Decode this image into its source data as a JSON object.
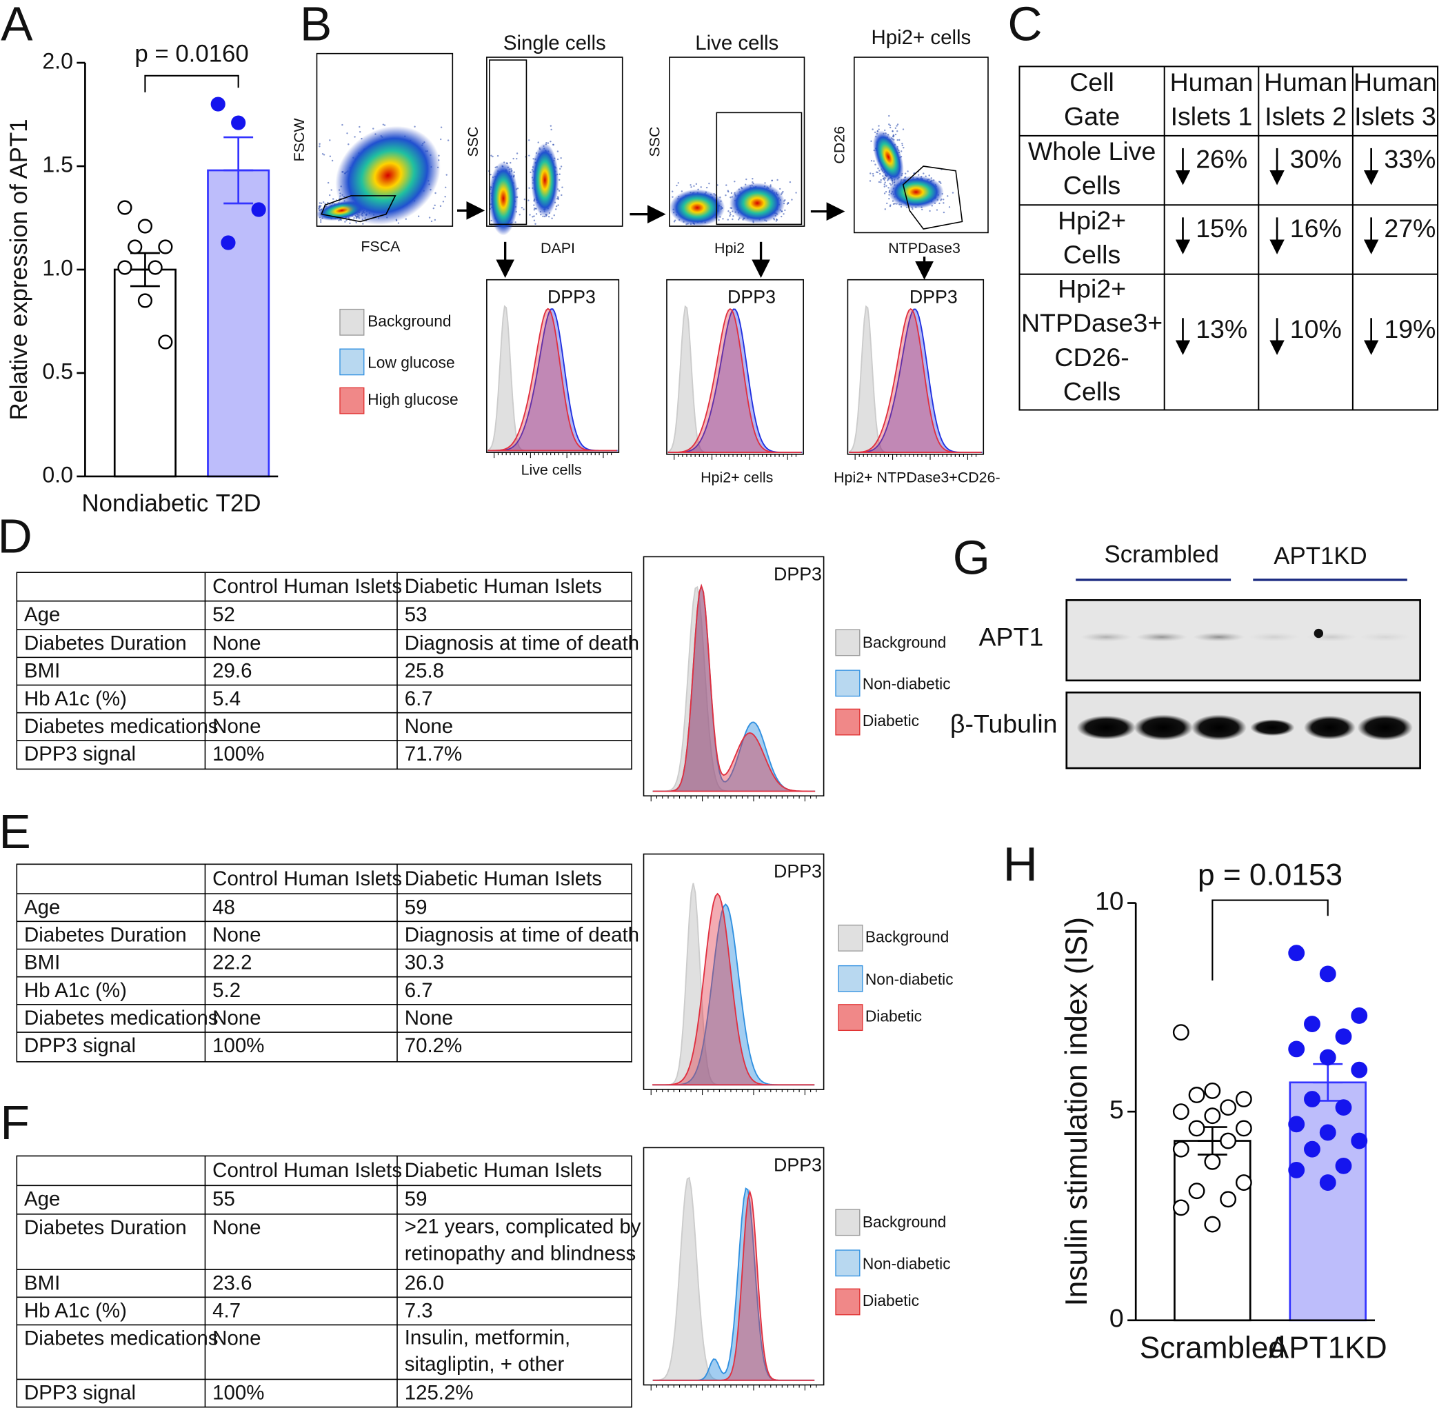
{
  "panel_labels": [
    "A",
    "B",
    "C",
    "D",
    "E",
    "F",
    "G",
    "H"
  ],
  "chart_data": [
    {
      "type": "bar",
      "ylabel": "Relative expression of APT1",
      "annotation": "p = 0.0160",
      "categories": [
        "Nondiabetic",
        "T2D"
      ],
      "values": [
        1.0,
        1.48
      ],
      "errors": [
        0.08,
        0.16
      ],
      "colors": [
        "#ffffff",
        "#bdbdfb"
      ],
      "edge_colors": [
        "#000000",
        "#3333ff"
      ],
      "points": [
        [
          1.3,
          1.21,
          1.11,
          1.11,
          1.01,
          1.01,
          0.85,
          0.65
        ],
        [
          1.8,
          1.71,
          1.29,
          1.13
        ]
      ],
      "point_colors": [
        "#ffffff",
        "#1515ee"
      ],
      "ylim": [
        0,
        2.0
      ],
      "yticks": [
        {
          "value": 0,
          "label": "0.0"
        },
        {
          "value": 0.5,
          "label": "0.5"
        },
        {
          "value": 1.0,
          "label": "1.0"
        },
        {
          "value": 1.5,
          "label": "1.5"
        },
        {
          "value": 2.0,
          "label": "2.0"
        }
      ]
    },
    {
      "type": "bar",
      "ylabel": "Insulin stimulation index (ISI)",
      "annotation": "p = 0.0153",
      "categories": [
        "Scrambled",
        "APT1KD"
      ],
      "values": [
        4.3,
        5.7
      ],
      "errors": [
        0.33,
        0.44
      ],
      "colors": [
        "#ffffff",
        "#bdbdfb"
      ],
      "edge_colors": [
        "#000000",
        "#3333ff"
      ],
      "points": [
        [
          6.9,
          5.5,
          5.3,
          5.4,
          5.1,
          5.0,
          4.9,
          4.6,
          4.6,
          4.3,
          4.1,
          3.8,
          3.3,
          3.1,
          2.9,
          2.7,
          2.3
        ],
        [
          8.8,
          8.3,
          7.3,
          7.1,
          6.8,
          6.5,
          6.3,
          6.0,
          5.3,
          5.1,
          4.7,
          4.5,
          4.3,
          4.1,
          3.7,
          3.6,
          3.3
        ]
      ],
      "point_colors": [
        "#ffffff",
        "#1515ee"
      ],
      "ylim": [
        0,
        10
      ],
      "yticks": [
        0,
        5,
        10
      ]
    }
  ],
  "flow": {
    "plots": [
      {
        "title": null,
        "ylabel": "FSCW",
        "xlabel": "FSCA"
      },
      {
        "title": "Single cells",
        "ylabel": "SSC",
        "xlabel": "DAPI"
      },
      {
        "title": "Live cells",
        "ylabel": "SSC",
        "xlabel": "Hpi2"
      },
      {
        "title": "Hpi2+ cells",
        "ylabel": "CD26",
        "xlabel": "NTPDase3"
      }
    ],
    "histograms": [
      {
        "marker": "DPP3",
        "xlabel": "Live cells"
      },
      {
        "marker": "DPP3",
        "xlabel": "Hpi2+ cells"
      },
      {
        "marker": "DPP3",
        "xlabel": "Hpi2+ NTPDase3+CD26-"
      }
    ],
    "legend": [
      "Background",
      "Low glucose",
      "High glucose"
    ]
  },
  "table_c": {
    "header": [
      [
        "Cell",
        "Gate"
      ],
      [
        "Human",
        "Islets 1"
      ],
      [
        "Human",
        "Islets 2"
      ],
      [
        "Human",
        "Islets 3"
      ]
    ],
    "rows": [
      [
        [
          "Whole Live",
          "Cells"
        ],
        [
          "26%"
        ],
        [
          "30%"
        ],
        [
          "33%"
        ]
      ],
      [
        [
          "Hpi2+",
          "Cells"
        ],
        [
          "15%"
        ],
        [
          "16%"
        ],
        [
          "27%"
        ]
      ],
      [
        [
          "Hpi2+",
          "NTPDase3+",
          "CD26-",
          "Cells"
        ],
        [
          "13%"
        ],
        [
          "10%"
        ],
        [
          "19%"
        ]
      ]
    ]
  },
  "tables": [
    {
      "header": [
        "Control Human Islets",
        "Diabetic Human Islets"
      ],
      "rows": [
        [
          "Age",
          "52",
          "53"
        ],
        [
          "Diabetes Duration",
          "None",
          "Diagnosis at time of death"
        ],
        [
          "BMI",
          "29.6",
          "25.8"
        ],
        [
          "Hb A1c (%)",
          "5.4",
          "6.7"
        ],
        [
          "Diabetes medications",
          "None",
          "None"
        ],
        [
          "DPP3 signal",
          "100%",
          "71.7%"
        ]
      ],
      "histogram": {
        "marker": "DPP3",
        "legend": [
          "Background",
          "Non-diabetic",
          "Diabetic"
        ]
      }
    },
    {
      "header": [
        "Control Human Islets",
        "Diabetic Human Islets"
      ],
      "rows": [
        [
          "Age",
          "48",
          "59"
        ],
        [
          "Diabetes Duration",
          "None",
          "Diagnosis at time of death"
        ],
        [
          "BMI",
          "22.2",
          "30.3"
        ],
        [
          "Hb A1c (%)",
          "5.2",
          "6.7"
        ],
        [
          "Diabetes medications",
          "None",
          "None"
        ],
        [
          "DPP3 signal",
          "100%",
          "70.2%"
        ]
      ],
      "histogram": {
        "marker": "DPP3",
        "legend": [
          "Background",
          "Non-diabetic",
          "Diabetic"
        ]
      }
    },
    {
      "header": [
        "Control Human Islets",
        "Diabetic Human Islets"
      ],
      "rows": [
        [
          "Age",
          "55",
          "59"
        ],
        [
          "Diabetes Duration",
          "None",
          [
            ">21 years, complicated by",
            "retinopathy and blindness"
          ]
        ],
        [
          "BMI",
          "23.6",
          "26.0"
        ],
        [
          "Hb A1c (%)",
          "4.7",
          "7.3"
        ],
        [
          "Diabetes medications",
          "None",
          [
            "Insulin, metformin,",
            "sitagliptin, + other"
          ]
        ],
        [
          "DPP3 signal",
          "100%",
          "125.2%"
        ]
      ],
      "histogram": {
        "marker": "DPP3",
        "legend": [
          "Background",
          "Non-diabetic",
          "Diabetic"
        ]
      }
    }
  ],
  "blot": {
    "groups": [
      "Scrambled",
      "APT1KD"
    ],
    "rows": [
      "APT1",
      "β-Tubulin"
    ]
  }
}
